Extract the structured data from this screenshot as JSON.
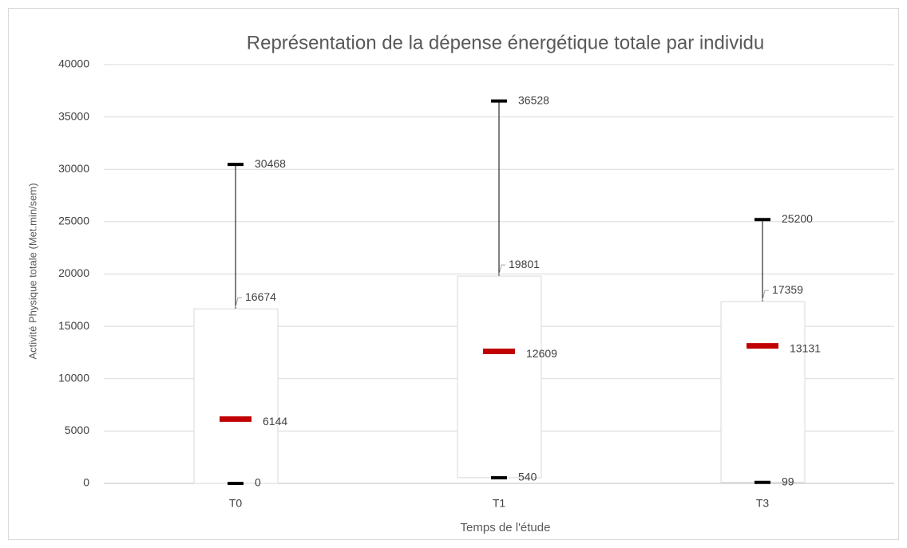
{
  "chart_data": {
    "type": "box",
    "title": "Représentation de la dépense énergétique totale par individu",
    "x_label": "Temps de l'étude",
    "y_label": "Activité Physique totale (Met.min/sem)",
    "categories": [
      "T0",
      "T1",
      "T3"
    ],
    "min": [
      0,
      540,
      99
    ],
    "median": [
      6144,
      12609,
      13131
    ],
    "q3": [
      16674,
      19801,
      17359
    ],
    "max": [
      30468,
      36528,
      25200
    ],
    "ylim": [
      0,
      40000
    ],
    "yticks": [
      0,
      5000,
      10000,
      15000,
      20000,
      25000,
      30000,
      35000,
      40000
    ],
    "grid": true,
    "box_color": "#ffffff",
    "median_color": "#c00000",
    "marker_color": "#000000"
  }
}
